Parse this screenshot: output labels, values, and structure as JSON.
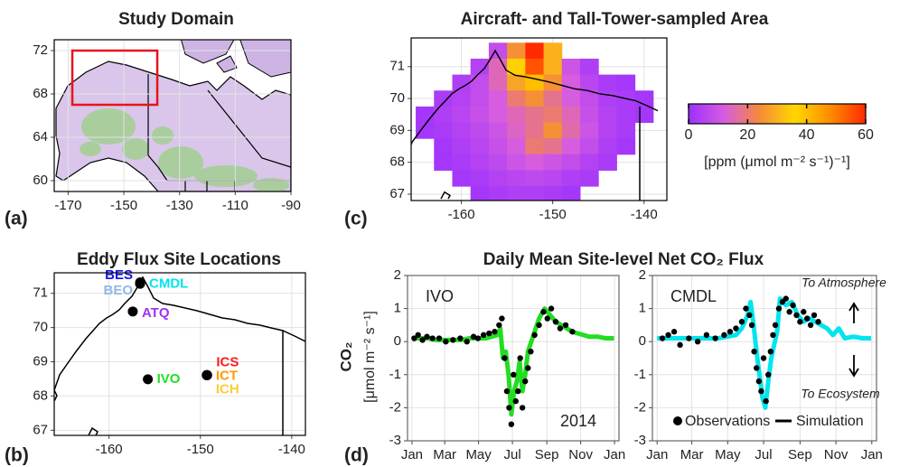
{
  "chart_data": [
    {
      "type": "map",
      "panel_label": "(a)",
      "title": "Study Domain",
      "xlim": [
        -175,
        -90
      ],
      "ylim": [
        59,
        73
      ],
      "xticks": [
        -170,
        -150,
        -130,
        -110,
        -90
      ],
      "yticks": [
        60,
        64,
        68,
        72
      ],
      "highlight": {
        "lon": [
          -168.5,
          -138
        ],
        "lat": [
          67,
          72
        ],
        "color": "#e8141c"
      }
    },
    {
      "type": "heatmap",
      "panel_label": "(c)",
      "title": "Aircraft- and Tall-Tower-sampled Area",
      "xlim": [
        -165.5,
        -137.5
      ],
      "ylim": [
        66.8,
        71.9
      ],
      "xticks": [
        -160,
        -150,
        -140
      ],
      "yticks": [
        67,
        68,
        69,
        70,
        71
      ],
      "x": [
        -164,
        -162,
        -160,
        -158,
        -156,
        -154,
        -152,
        -150,
        -148,
        -146,
        -144,
        -142,
        -140
      ],
      "y": [
        71.5,
        71.0,
        70.5,
        70.0,
        69.5,
        69.0,
        68.5,
        68.0,
        67.5,
        67.0
      ],
      "values": [
        [
          null,
          null,
          null,
          null,
          8,
          25,
          60,
          30,
          null,
          null,
          null,
          null,
          null
        ],
        [
          null,
          null,
          null,
          5,
          15,
          35,
          55,
          30,
          10,
          4,
          null,
          null,
          null
        ],
        [
          null,
          null,
          4,
          8,
          15,
          28,
          40,
          25,
          12,
          6,
          3,
          2,
          null
        ],
        [
          null,
          3,
          5,
          8,
          12,
          20,
          25,
          18,
          12,
          8,
          4,
          3,
          2
        ],
        [
          2,
          4,
          6,
          9,
          12,
          15,
          18,
          20,
          15,
          9,
          5,
          3,
          2
        ],
        [
          2,
          3,
          5,
          7,
          10,
          14,
          18,
          25,
          16,
          10,
          5,
          3,
          null
        ],
        [
          null,
          2,
          4,
          6,
          9,
          12,
          20,
          18,
          12,
          8,
          4,
          2,
          null
        ],
        [
          null,
          2,
          3,
          5,
          7,
          10,
          12,
          10,
          8,
          5,
          3,
          null,
          null
        ],
        [
          null,
          null,
          2,
          3,
          5,
          6,
          7,
          6,
          4,
          3,
          null,
          null,
          null
        ],
        [
          null,
          null,
          null,
          2,
          3,
          4,
          4,
          3,
          2,
          null,
          null,
          null,
          null
        ]
      ],
      "clim": [
        0,
        60
      ],
      "colormap": [
        "#9b30ff",
        "#d65ce0",
        "#f58a3a",
        "#ffd700",
        "#ff8c00",
        "#ff2a00"
      ],
      "colorbar_ticks": [
        0,
        20,
        40,
        60
      ],
      "colorbar_label": "[ppm (μmol m⁻² s⁻¹)⁻¹]"
    },
    {
      "type": "sites",
      "panel_label": "(b)",
      "title": "Eddy Flux Site Locations",
      "xlim": [
        -166,
        -138.5
      ],
      "ylim": [
        66.85,
        71.6
      ],
      "xticks": [
        -160,
        -150,
        -140
      ],
      "yticks": [
        67,
        68,
        69,
        70,
        71
      ],
      "sites": [
        {
          "name": "BES",
          "color": "#1414e6",
          "lon": -156.6,
          "lat": 71.28
        },
        {
          "name": "BEO",
          "color": "#8fb8e8",
          "lon": -156.6,
          "lat": 71.28
        },
        {
          "name": "CMDL",
          "color": "#00e5ee",
          "lon": -156.6,
          "lat": 71.32
        },
        {
          "name": "ATQ",
          "color": "#a030f0",
          "lon": -157.4,
          "lat": 70.47
        },
        {
          "name": "ICS",
          "color": "#ff1a1a",
          "lon": -149.25,
          "lat": 68.61
        },
        {
          "name": "ICT",
          "color": "#ff9900",
          "lon": -149.3,
          "lat": 68.61
        },
        {
          "name": "ICH",
          "color": "#ffcc33",
          "lon": -149.3,
          "lat": 68.61
        },
        {
          "name": "IVO",
          "color": "#22dd22",
          "lon": -155.75,
          "lat": 68.49
        }
      ]
    },
    {
      "type": "line",
      "panel_label": "(d)",
      "title": "Daily Mean Site-level Net CO₂ Flux",
      "ylabel": "CO₂",
      "ylabel_units": "[μmol m⁻² s⁻¹]",
      "xlim": [
        -7,
        374
      ],
      "ylim": [
        -3,
        2
      ],
      "xticks": [
        {
          "value": 1,
          "label": "Jan"
        },
        {
          "value": 60,
          "label": "Mar"
        },
        {
          "value": 121,
          "label": "May"
        },
        {
          "value": 182,
          "label": "Jul"
        },
        {
          "value": 244,
          "label": "Sep"
        },
        {
          "value": 305,
          "label": "Nov"
        },
        {
          "value": 366,
          "label": "Jan"
        }
      ],
      "yticks": [
        -3,
        -2,
        -1,
        0,
        1,
        2
      ],
      "grid": true,
      "annotations": [
        "2014",
        "To Atmosphere",
        "To Ecosystem"
      ],
      "legend": {
        "observations": "Observations",
        "simulation": "Simulation",
        "color": "#000000"
      },
      "panels": [
        {
          "name": "IVO",
          "simulation": {
            "color": "#22dd22",
            "x": [
              1,
              15,
              30,
              45,
              60,
              75,
              90,
              105,
              120,
              135,
              145,
              155,
              160,
              165,
              170,
              175,
              180,
              185,
              190,
              195,
              200,
              205,
              210,
              220,
              230,
              240,
              250,
              260,
              270,
              280,
              290,
              300,
              310,
              320,
              335,
              350,
              365
            ],
            "values": [
              0.1,
              0.1,
              0.1,
              0.05,
              0.05,
              0.05,
              0.05,
              0.1,
              0.1,
              0.1,
              0.15,
              0.2,
              0.4,
              -0.5,
              -0.3,
              -1.0,
              -2.2,
              -1.5,
              -1.2,
              -0.6,
              -1.5,
              -1.0,
              -0.3,
              0.2,
              0.7,
              1.0,
              0.8,
              0.6,
              0.5,
              0.4,
              0.3,
              0.25,
              0.2,
              0.15,
              0.15,
              0.1,
              0.1
            ]
          },
          "observations": {
            "color": "#000000",
            "x": [
              5,
              12,
              20,
              28,
              38,
              50,
              62,
              75,
              88,
              100,
              112,
              120,
              130,
              140,
              150,
              158,
              163,
              168,
              172,
              176,
              180,
              184,
              188,
              192,
              196,
              200,
              205,
              210,
              215,
              222,
              230,
              238,
              245,
              252,
              260,
              268,
              278,
              290
            ],
            "values": [
              0.1,
              0.2,
              0.05,
              0.15,
              0.1,
              0.1,
              0.0,
              0.05,
              0.1,
              0.0,
              0.15,
              0.1,
              0.2,
              0.25,
              0.3,
              0.5,
              0.7,
              -0.5,
              -1.5,
              -2.0,
              -2.5,
              -1.0,
              -1.8,
              -1.5,
              -0.5,
              -2.0,
              -1.2,
              -0.8,
              -0.3,
              0.2,
              0.5,
              0.9,
              0.7,
              1.0,
              0.6,
              0.4,
              0.5,
              0.3
            ]
          }
        },
        {
          "name": "CMDL",
          "simulation": {
            "color": "#00e5ee",
            "x": [
              1,
              15,
              30,
              45,
              60,
              75,
              90,
              105,
              120,
              135,
              145,
              155,
              160,
              165,
              170,
              175,
              180,
              185,
              190,
              195,
              200,
              205,
              210,
              220,
              230,
              240,
              250,
              260,
              270,
              280,
              290,
              300,
              310,
              320,
              335,
              350,
              365
            ],
            "values": [
              0.1,
              0.1,
              0.1,
              0.1,
              0.1,
              0.1,
              0.1,
              0.1,
              0.15,
              0.2,
              0.4,
              0.8,
              1.2,
              0.5,
              -0.3,
              -1.0,
              -1.7,
              -2.0,
              -1.2,
              -0.5,
              -0.1,
              0.3,
              1.3,
              1.1,
              1.2,
              0.8,
              0.6,
              0.7,
              0.6,
              0.5,
              0.4,
              0.2,
              0.4,
              0.1,
              0.15,
              0.1,
              0.1
            ]
          },
          "observations": {
            "color": "#000000",
            "x": [
              10,
              20,
              30,
              40,
              55,
              70,
              85,
              100,
              115,
              125,
              135,
              145,
              152,
              158,
              162,
              166,
              170,
              174,
              178,
              182,
              186,
              190,
              194,
              198,
              202,
              208,
              214,
              220,
              226,
              232,
              238,
              244,
              250,
              256,
              262,
              268,
              275
            ],
            "values": [
              0.1,
              0.2,
              0.3,
              -0.1,
              0.1,
              0.0,
              0.2,
              0.1,
              0.2,
              0.3,
              0.4,
              0.6,
              1.0,
              0.8,
              0.5,
              -0.3,
              -0.8,
              -1.2,
              -1.5,
              -0.5,
              -1.8,
              -1.0,
              -0.3,
              0.2,
              0.5,
              1.0,
              1.2,
              1.3,
              0.9,
              1.1,
              0.8,
              0.6,
              0.9,
              0.7,
              0.5,
              0.8,
              0.6
            ]
          }
        }
      ]
    }
  ]
}
